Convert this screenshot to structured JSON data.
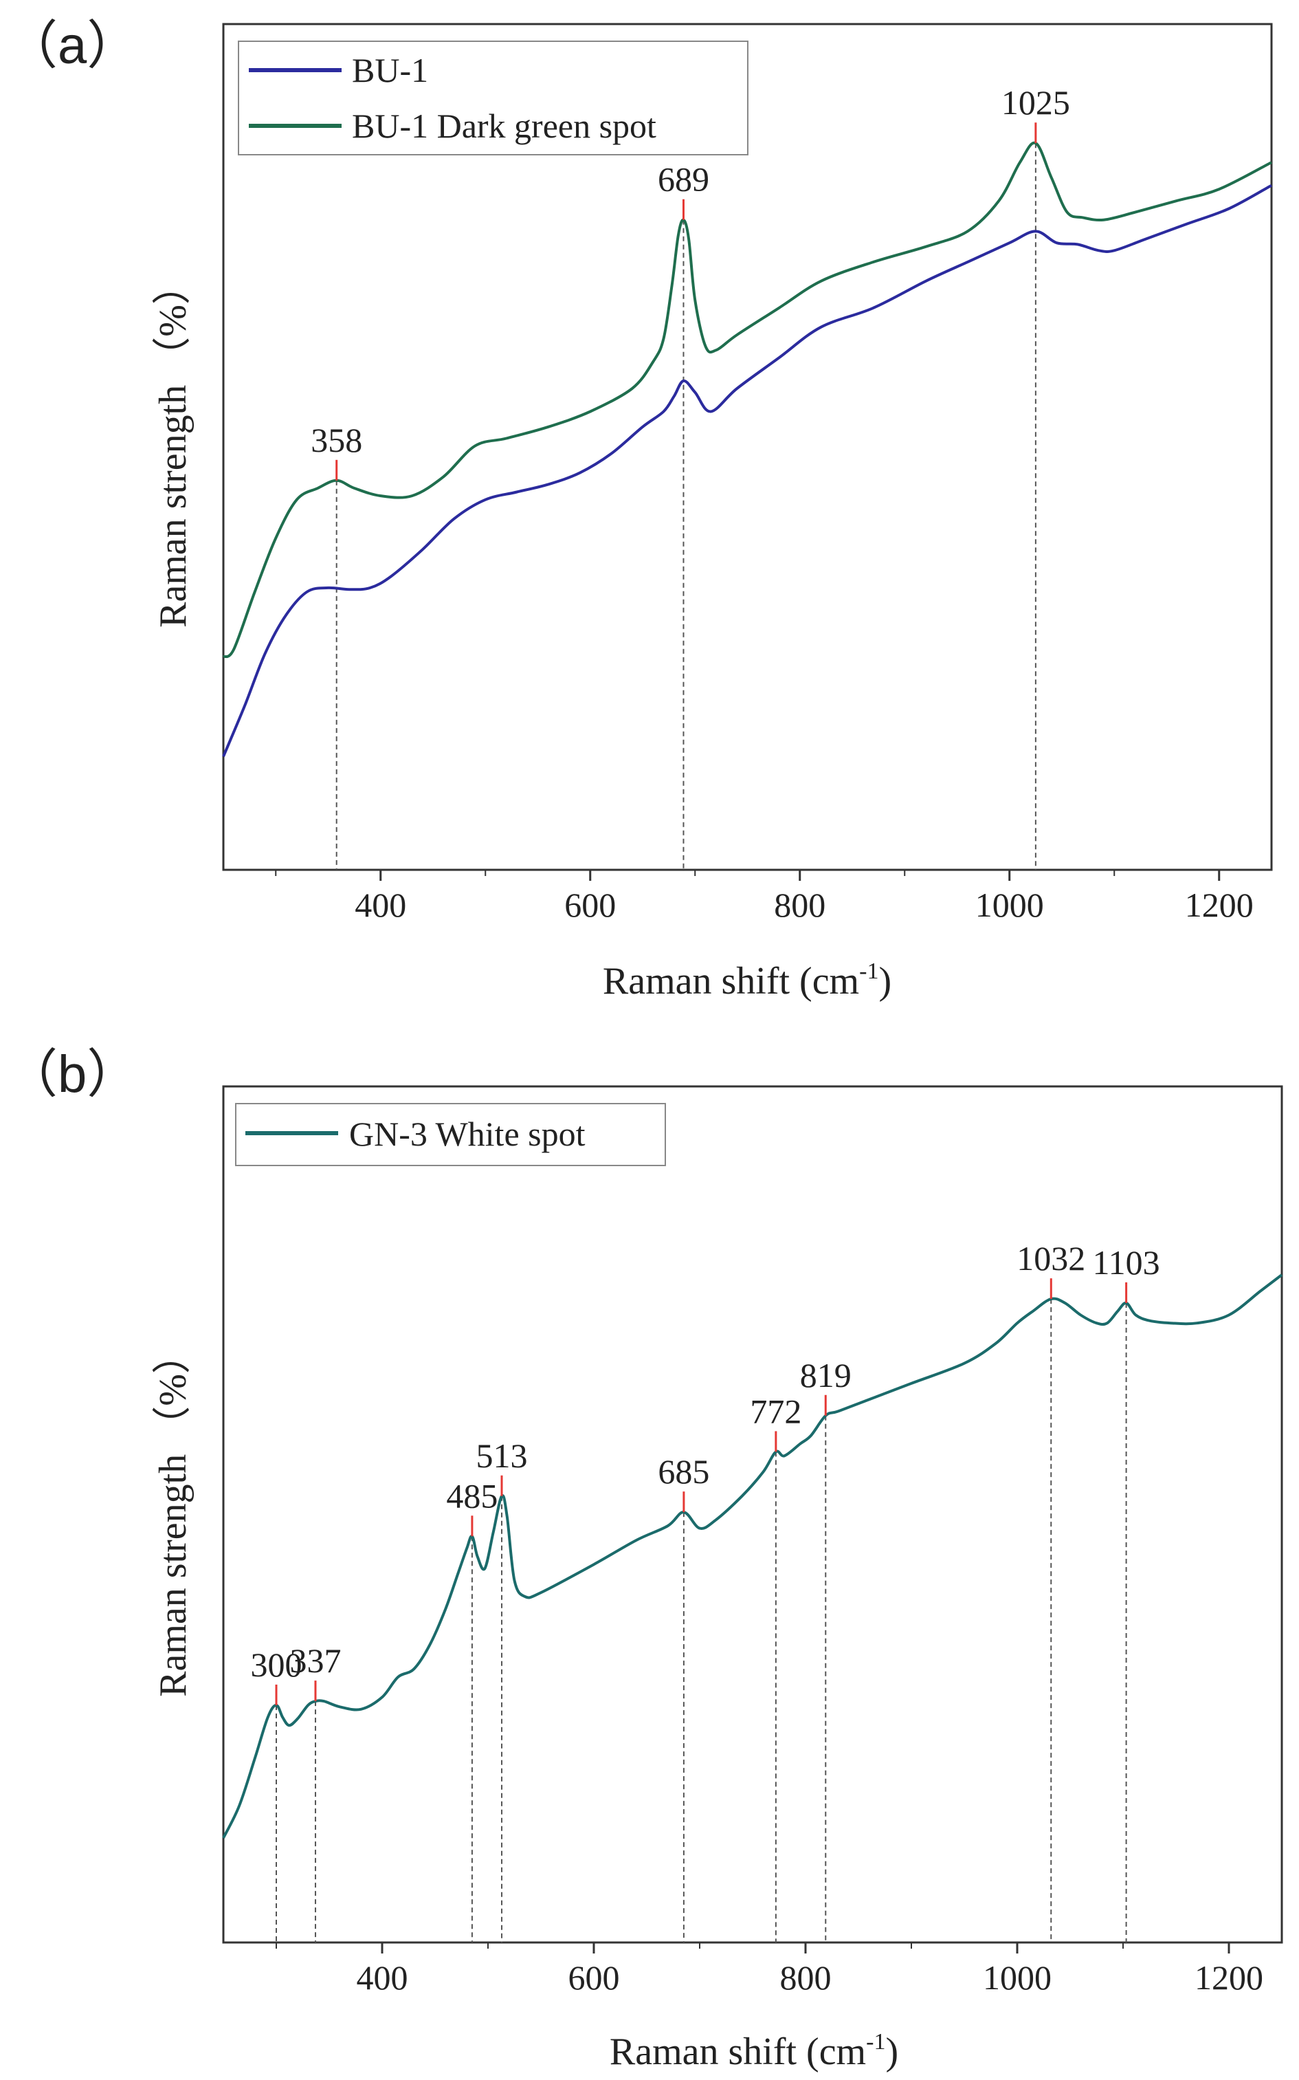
{
  "chart_data": [
    {
      "panel_label": "（a）",
      "type": "line",
      "xlabel": "Raman shift (cm",
      "xlabel_sup": "-1",
      "xlabel_close": ")",
      "ylabel": "Raman strength （%）",
      "xlim": [
        250,
        1250
      ],
      "ylim": [
        0,
        100
      ],
      "x_ticks": [
        400,
        600,
        800,
        1000,
        1200
      ],
      "x_tick_labels": [
        "400",
        "600",
        "800",
        "1000",
        "1200"
      ],
      "x_minor_ticks": [
        300,
        500,
        700,
        900,
        1100
      ],
      "grid": false,
      "legend_position": "top-left",
      "series": [
        {
          "name": "BU-1",
          "color": "#2b2b9e",
          "x": [
            250,
            270,
            290,
            310,
            330,
            350,
            370,
            390,
            410,
            440,
            470,
            500,
            530,
            560,
            590,
            620,
            650,
            670,
            680,
            689,
            700,
            715,
            740,
            780,
            820,
            870,
            920,
            960,
            1000,
            1025,
            1045,
            1065,
            1085,
            1100,
            1130,
            1170,
            1210,
            1250
          ],
          "values": [
            8.5,
            15,
            22,
            27,
            30,
            30.5,
            30.3,
            30.5,
            32,
            35.5,
            39.5,
            42,
            43,
            44,
            45.5,
            48,
            51.5,
            53.5,
            55.5,
            57.5,
            56,
            53.5,
            56.5,
            60.5,
            64.5,
            67,
            70.5,
            73,
            75.5,
            77,
            75.5,
            75.3,
            74.5,
            74.5,
            76,
            78,
            80,
            83
          ]
        },
        {
          "name": "BU-1 Dark green spot",
          "color": "#1f6e4e",
          "x": [
            250,
            260,
            280,
            300,
            320,
            340,
            358,
            375,
            400,
            430,
            460,
            490,
            520,
            560,
            600,
            640,
            660,
            670,
            678,
            684,
            689,
            694,
            700,
            710,
            720,
            740,
            780,
            820,
            870,
            920,
            960,
            990,
            1010,
            1025,
            1040,
            1055,
            1070,
            1090,
            1120,
            1160,
            1200,
            1250
          ],
          "values": [
            21.5,
            22.5,
            30,
            37,
            42,
            43.5,
            44.5,
            43.5,
            42.5,
            42.5,
            45,
            49,
            50,
            51.5,
            53.5,
            56.5,
            60,
            63,
            70,
            76.5,
            78.5,
            76,
            68,
            62,
            61.5,
            63.5,
            67,
            70.5,
            73,
            75,
            77,
            81,
            86,
            88.5,
            84,
            79.5,
            78.8,
            78.5,
            79.5,
            81,
            82.5,
            86
          ]
        }
      ],
      "peaks": [
        {
          "x": 358,
          "label": "358",
          "series": 1
        },
        {
          "x": 689,
          "label": "689",
          "series": 1
        },
        {
          "x": 1025,
          "label": "1025",
          "series": 1
        }
      ]
    },
    {
      "panel_label": "（b）",
      "type": "line",
      "xlabel": "Raman shift (cm",
      "xlabel_sup": "-1",
      "xlabel_close": ")",
      "ylabel": "Raman strength （%）",
      "xlim": [
        250,
        1250
      ],
      "ylim": [
        0,
        100
      ],
      "x_ticks": [
        400,
        600,
        800,
        1000,
        1200
      ],
      "x_tick_labels": [
        "400",
        "600",
        "800",
        "1000",
        "1200"
      ],
      "x_minor_ticks": [
        300,
        500,
        700,
        900,
        1100
      ],
      "grid": false,
      "legend_position": "top-left",
      "series": [
        {
          "name": "GN-3 White spot",
          "color": "#1b6b6b",
          "x": [
            250,
            265,
            280,
            292,
            300,
            306,
            312,
            320,
            330,
            337,
            345,
            360,
            380,
            400,
            415,
            430,
            445,
            460,
            472,
            480,
            485,
            490,
            497,
            505,
            513,
            518,
            525,
            535,
            550,
            600,
            640,
            670,
            685,
            700,
            715,
            740,
            760,
            772,
            780,
            795,
            805,
            819,
            830,
            850,
            900,
            950,
            980,
            1000,
            1015,
            1032,
            1045,
            1060,
            1075,
            1085,
            1095,
            1103,
            1112,
            1125,
            1145,
            1170,
            1200,
            1230,
            1250
          ],
          "values": [
            10,
            14,
            20,
            25,
            26.5,
            25,
            24,
            24.8,
            26.5,
            27,
            27,
            26.3,
            26,
            27.5,
            30,
            31,
            34,
            38.5,
            43,
            46,
            47.5,
            45,
            43.5,
            48,
            52.5,
            50,
            42,
            40,
            40.5,
            44,
            47,
            48.8,
            50.5,
            48.5,
            49.5,
            52.5,
            55.5,
            58,
            57.5,
            59,
            60,
            62.5,
            63,
            64,
            66.5,
            69,
            71.5,
            74,
            75.5,
            77,
            76.5,
            75,
            74,
            74,
            75.5,
            76.5,
            75,
            74.3,
            74,
            74,
            75,
            78,
            80
          ]
        }
      ],
      "peaks": [
        {
          "x": 300,
          "label": "300",
          "series": 0
        },
        {
          "x": 337,
          "label": "337",
          "series": 0
        },
        {
          "x": 485,
          "label": "485",
          "series": 0
        },
        {
          "x": 513,
          "label": "513",
          "series": 0
        },
        {
          "x": 685,
          "label": "685",
          "series": 0
        },
        {
          "x": 772,
          "label": "772",
          "series": 0
        },
        {
          "x": 819,
          "label": "819",
          "series": 0
        },
        {
          "x": 1032,
          "label": "1032",
          "series": 0
        },
        {
          "x": 1103,
          "label": "1103",
          "series": 0
        }
      ]
    }
  ]
}
